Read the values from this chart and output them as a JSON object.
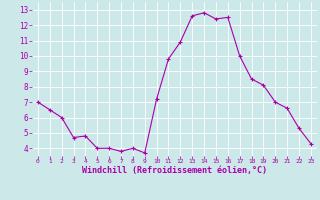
{
  "x": [
    0,
    1,
    2,
    3,
    4,
    5,
    6,
    7,
    8,
    9,
    10,
    11,
    12,
    13,
    14,
    15,
    16,
    17,
    18,
    19,
    20,
    21,
    22,
    23
  ],
  "y": [
    7.0,
    6.5,
    6.0,
    4.7,
    4.8,
    4.0,
    4.0,
    3.8,
    4.0,
    3.7,
    7.2,
    9.8,
    10.9,
    12.6,
    12.8,
    12.4,
    12.5,
    10.0,
    8.5,
    8.1,
    7.0,
    6.6,
    5.3,
    4.3
  ],
  "line_color": "#aa00aa",
  "marker": "+",
  "marker_color": "#aa00aa",
  "bg_color": "#cce8e8",
  "grid_color": "#ffffff",
  "xlabel": "Windchill (Refroidissement éolien,°C)",
  "xlabel_color": "#aa00aa",
  "tick_color": "#aa00aa",
  "ylim": [
    3.5,
    13.5
  ],
  "yticks": [
    4,
    5,
    6,
    7,
    8,
    9,
    10,
    11,
    12,
    13
  ],
  "xlim": [
    -0.5,
    23.5
  ],
  "xticks": [
    0,
    1,
    2,
    3,
    4,
    5,
    6,
    7,
    8,
    9,
    10,
    11,
    12,
    13,
    14,
    15,
    16,
    17,
    18,
    19,
    20,
    21,
    22,
    23
  ],
  "figsize": [
    3.2,
    2.0
  ],
  "dpi": 100
}
